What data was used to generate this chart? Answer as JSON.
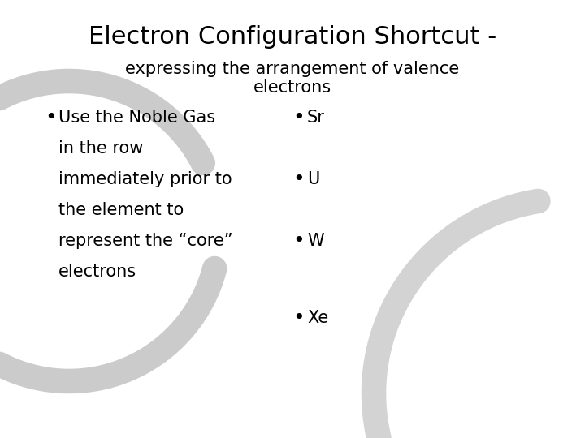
{
  "title_line1": "Electron Configuration Shortcut -",
  "subtitle_line1": "expressing the arrangement of valence",
  "subtitle_line2": "electrons",
  "bullet_left": [
    "Use the Noble Gas",
    "in the row",
    "immediately prior to",
    "the element to",
    "represent the “core”",
    "electrons"
  ],
  "bullet_right": [
    "Sr",
    "U",
    "W",
    "Xe"
  ],
  "background_color": "#ffffff",
  "text_color": "#000000",
  "title_fontsize": 22,
  "subtitle_fontsize": 15,
  "bullet_fontsize": 15,
  "circle_color": "#b0b0b0",
  "font_family": "DejaVu Sans"
}
